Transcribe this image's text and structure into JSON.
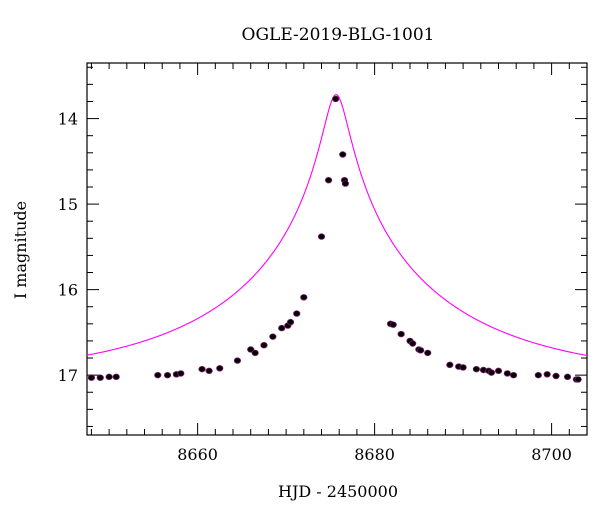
{
  "chart_data": {
    "type": "scatter",
    "title": "OGLE-2019-BLG-1001",
    "xlabel": "HJD - 2450000",
    "ylabel": "I magnitude",
    "xlim": [
      8647.5,
      8704
    ],
    "ylim": [
      17.7,
      13.35
    ],
    "y_inverted": true,
    "x_ticks": [
      8660,
      8680,
      8700
    ],
    "y_ticks": [
      14,
      15,
      16,
      17
    ],
    "grid": false,
    "legend": "none",
    "colors": {
      "points": "#000000",
      "point_edge": "#7a1a6a",
      "model": "#ff00ff",
      "axes": "#000000"
    },
    "series": [
      {
        "kind": "points",
        "x": [
          8648.0,
          8649.0,
          8650.0,
          8650.8,
          8655.5,
          8656.6,
          8657.6,
          8658.1,
          8660.5,
          8661.3,
          8662.5,
          8664.5,
          8666.0,
          8666.5,
          8667.5,
          8668.5,
          8669.5,
          8670.2,
          8670.5,
          8671.2,
          8672.0,
          8674.0,
          8674.8,
          8675.6,
          8676.4,
          8676.6,
          8676.7,
          8681.8,
          8682.1,
          8683.0,
          8684.0,
          8684.3,
          8685.0,
          8685.2,
          8686.0,
          8688.5,
          8689.5,
          8690.0,
          8691.5,
          8692.3,
          8692.9,
          8693.2,
          8694.0,
          8695.0,
          8695.7,
          8698.5,
          8699.5,
          8700.5,
          8701.8,
          8702.8,
          8703.0
        ],
        "y": [
          17.03,
          17.03,
          17.02,
          17.02,
          17.0,
          17.0,
          16.99,
          16.98,
          16.93,
          16.95,
          16.92,
          16.83,
          16.7,
          16.74,
          16.65,
          16.55,
          16.45,
          16.42,
          16.38,
          16.28,
          16.09,
          15.38,
          14.72,
          13.77,
          14.42,
          14.72,
          14.76,
          16.4,
          16.41,
          16.52,
          16.6,
          16.63,
          16.7,
          16.71,
          16.74,
          16.88,
          16.9,
          16.91,
          16.93,
          16.94,
          16.95,
          16.97,
          16.95,
          16.98,
          17.0,
          17.0,
          16.99,
          17.01,
          17.02,
          17.05,
          17.05
        ]
      },
      {
        "kind": "model",
        "baseline": 17.04,
        "peak_mag": 13.72,
        "t0": 8675.65,
        "u0": 0.0555,
        "tE": 24.0
      }
    ]
  }
}
